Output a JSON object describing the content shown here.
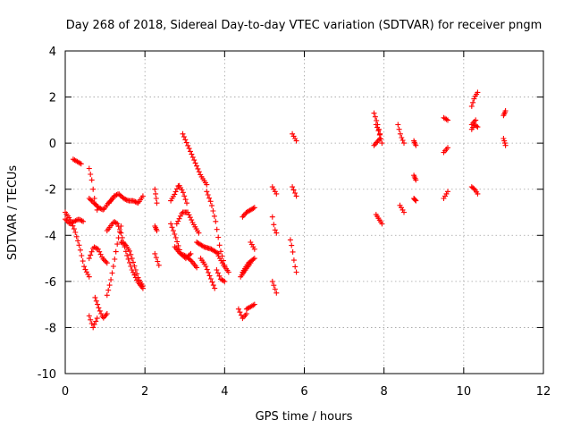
{
  "chart_data": {
    "type": "scatter",
    "title": "Day 268 of 2018, Sidereal Day-to-day VTEC variation (SDTVAR) for receiver pngm",
    "xlabel": "GPS time / hours",
    "ylabel": "SDTVAR / TECUs",
    "xlim": [
      0,
      12
    ],
    "ylim": [
      -10,
      4
    ],
    "xticks": [
      0,
      2,
      4,
      6,
      8,
      10,
      12
    ],
    "yticks": [
      -10,
      -8,
      -6,
      -4,
      -2,
      0,
      2,
      4
    ],
    "xtick_labels": [
      "0",
      "2",
      "4",
      "6",
      "8",
      "10",
      "12"
    ],
    "ytick_labels": [
      "-10",
      "-8",
      "-6",
      "-4",
      "-2",
      "0",
      "2",
      "4"
    ],
    "grid": true,
    "marker": "+",
    "color": "#ff0000",
    "series": [
      {
        "name": "SDTVAR",
        "tracks": [
          {
            "x0": 0.0,
            "x1": 0.6,
            "y": [
              -3.0,
              -3.3,
              -3.8,
              -4.5,
              -5.4,
              -5.8
            ]
          },
          {
            "x0": 0.0,
            "x1": 0.45,
            "y": [
              -3.3,
              -3.5,
              -3.4,
              -3.3,
              -3.4
            ]
          },
          {
            "x0": 0.2,
            "x1": 0.4,
            "y": [
              -0.7,
              -0.9
            ]
          },
          {
            "x0": 0.6,
            "x1": 0.8,
            "y": [
              -1.1,
              -1.6,
              -2.4,
              -2.9
            ]
          },
          {
            "x0": 0.6,
            "x1": 0.8,
            "y": [
              -7.5,
              -8.0,
              -7.6
            ]
          },
          {
            "x0": 0.75,
            "x1": 1.05,
            "y": [
              -6.7,
              -7.2,
              -7.6,
              -7.4
            ]
          },
          {
            "x0": 0.6,
            "x1": 1.2,
            "y": [
              -2.4,
              -2.6,
              -2.8,
              -2.9,
              -2.6,
              -2.4
            ]
          },
          {
            "x0": 0.6,
            "x1": 1.05,
            "y": [
              -5.0,
              -4.5,
              -4.6,
              -5.0,
              -5.2
            ]
          },
          {
            "x0": 1.05,
            "x1": 1.4,
            "y": [
              -6.6,
              -6.0,
              -5.2,
              -4.3,
              -3.6
            ]
          },
          {
            "x0": 1.05,
            "x1": 1.4,
            "y": [
              -3.8,
              -3.6,
              -3.4,
              -3.5,
              -3.9
            ]
          },
          {
            "x0": 1.1,
            "x1": 1.95,
            "y": [
              -2.6,
              -2.3,
              -2.2,
              -2.4,
              -2.5,
              -2.5,
              -2.6,
              -2.3
            ]
          },
          {
            "x0": 1.4,
            "x1": 1.95,
            "y": [
              -3.9,
              -4.8,
              -5.5,
              -6.0,
              -6.3
            ]
          },
          {
            "x0": 1.4,
            "x1": 1.95,
            "y": [
              -4.3,
              -4.4,
              -4.7,
              -5.3,
              -5.9,
              -6.2
            ]
          },
          {
            "x0": 2.25,
            "x1": 2.3,
            "y": [
              -2.0,
              -2.6
            ]
          },
          {
            "x0": 2.25,
            "x1": 2.3,
            "y": [
              -3.6,
              -3.8
            ]
          },
          {
            "x0": 2.25,
            "x1": 2.35,
            "y": [
              -4.8,
              -5.3
            ]
          },
          {
            "x0": 2.65,
            "x1": 3.05,
            "y": [
              -2.5,
              -2.2,
              -1.8,
              -2.1,
              -2.6
            ]
          },
          {
            "x0": 2.65,
            "x1": 3.15,
            "y": [
              -3.5,
              -4.1,
              -4.8,
              -5.0,
              -4.8
            ]
          },
          {
            "x0": 2.75,
            "x1": 3.3,
            "y": [
              -4.5,
              -4.8,
              -4.9,
              -5.1,
              -5.4
            ]
          },
          {
            "x0": 2.8,
            "x1": 3.35,
            "y": [
              -3.5,
              -3.0,
              -3.0,
              -3.5,
              -3.9
            ]
          },
          {
            "x0": 2.95,
            "x1": 3.55,
            "y": [
              0.4,
              -0.2,
              -0.8,
              -1.4,
              -1.8
            ]
          },
          {
            "x0": 3.3,
            "x1": 3.85,
            "y": [
              -4.3,
              -4.5,
              -4.6,
              -4.8
            ]
          },
          {
            "x0": 3.4,
            "x1": 3.75,
            "y": [
              -5.0,
              -5.3,
              -5.8,
              -6.3
            ]
          },
          {
            "x0": 3.55,
            "x1": 4.0,
            "y": [
              -2.1,
              -2.6,
              -3.4,
              -4.6,
              -5.3
            ]
          },
          {
            "x0": 3.8,
            "x1": 4.0,
            "y": [
              -5.5,
              -5.9,
              -6.0
            ]
          },
          {
            "x0": 3.85,
            "x1": 4.1,
            "y": [
              -4.9,
              -5.3,
              -5.6
            ]
          },
          {
            "x0": 4.35,
            "x1": 4.55,
            "y": [
              -7.2,
              -7.6,
              -7.4
            ]
          },
          {
            "x0": 4.45,
            "x1": 4.75,
            "y": [
              -3.2,
              -3.0,
              -2.9,
              -2.8
            ]
          },
          {
            "x0": 4.45,
            "x1": 4.75,
            "y": [
              -5.6,
              -5.2,
              -5.0
            ]
          },
          {
            "x0": 4.4,
            "x1": 4.65,
            "y": [
              -5.8,
              -5.5,
              -5.2
            ]
          },
          {
            "x0": 4.55,
            "x1": 4.75,
            "y": [
              -7.2,
              -7.1,
              -7.0
            ]
          },
          {
            "x0": 4.65,
            "x1": 4.75,
            "y": [
              -4.3,
              -4.6
            ]
          },
          {
            "x0": 5.2,
            "x1": 5.3,
            "y": [
              -1.9,
              -2.2
            ]
          },
          {
            "x0": 5.2,
            "x1": 5.3,
            "y": [
              -3.2,
              -3.7,
              -3.9
            ]
          },
          {
            "x0": 5.2,
            "x1": 5.3,
            "y": [
              -6.0,
              -6.5
            ]
          },
          {
            "x0": 5.7,
            "x1": 5.8,
            "y": [
              0.4,
              0.1
            ]
          },
          {
            "x0": 5.7,
            "x1": 5.8,
            "y": [
              -1.9,
              -2.3
            ]
          },
          {
            "x0": 5.65,
            "x1": 5.8,
            "y": [
              -4.2,
              -4.6,
              -5.2,
              -5.6
            ]
          },
          {
            "x0": 7.75,
            "x1": 7.9,
            "y": [
              1.3,
              0.9,
              0.4
            ]
          },
          {
            "x0": 7.75,
            "x1": 7.9,
            "y": [
              -0.1,
              0.2
            ]
          },
          {
            "x0": 7.8,
            "x1": 7.95,
            "y": [
              0.8,
              0.6,
              0.3,
              0.0
            ]
          },
          {
            "x0": 7.8,
            "x1": 7.95,
            "y": [
              -3.1,
              -3.5
            ]
          },
          {
            "x0": 8.35,
            "x1": 8.5,
            "y": [
              0.8,
              0.3,
              0.0
            ]
          },
          {
            "x0": 8.4,
            "x1": 8.5,
            "y": [
              -2.7,
              -3.0
            ]
          },
          {
            "x0": 8.75,
            "x1": 8.8,
            "y": [
              0.1,
              -0.1
            ]
          },
          {
            "x0": 8.75,
            "x1": 8.8,
            "y": [
              -1.4,
              -1.6
            ]
          },
          {
            "x0": 8.75,
            "x1": 8.8,
            "y": [
              -2.4,
              -2.5
            ]
          },
          {
            "x0": 9.5,
            "x1": 9.6,
            "y": [
              1.1,
              1.0
            ]
          },
          {
            "x0": 9.5,
            "x1": 9.6,
            "y": [
              -0.4,
              -0.2
            ]
          },
          {
            "x0": 9.5,
            "x1": 9.6,
            "y": [
              -2.4,
              -2.1
            ]
          },
          {
            "x0": 10.2,
            "x1": 10.35,
            "y": [
              1.6,
              2.0,
              2.2
            ]
          },
          {
            "x0": 10.2,
            "x1": 10.3,
            "y": [
              0.8,
              1.0
            ]
          },
          {
            "x0": 10.2,
            "x1": 10.35,
            "y": [
              0.6,
              0.8,
              0.7
            ]
          },
          {
            "x0": 10.2,
            "x1": 10.35,
            "y": [
              -1.9,
              -2.0,
              -2.2
            ]
          },
          {
            "x0": 11.0,
            "x1": 11.05,
            "y": [
              1.2,
              1.4
            ]
          },
          {
            "x0": 11.0,
            "x1": 11.05,
            "y": [
              0.2,
              -0.1
            ]
          }
        ]
      }
    ]
  }
}
